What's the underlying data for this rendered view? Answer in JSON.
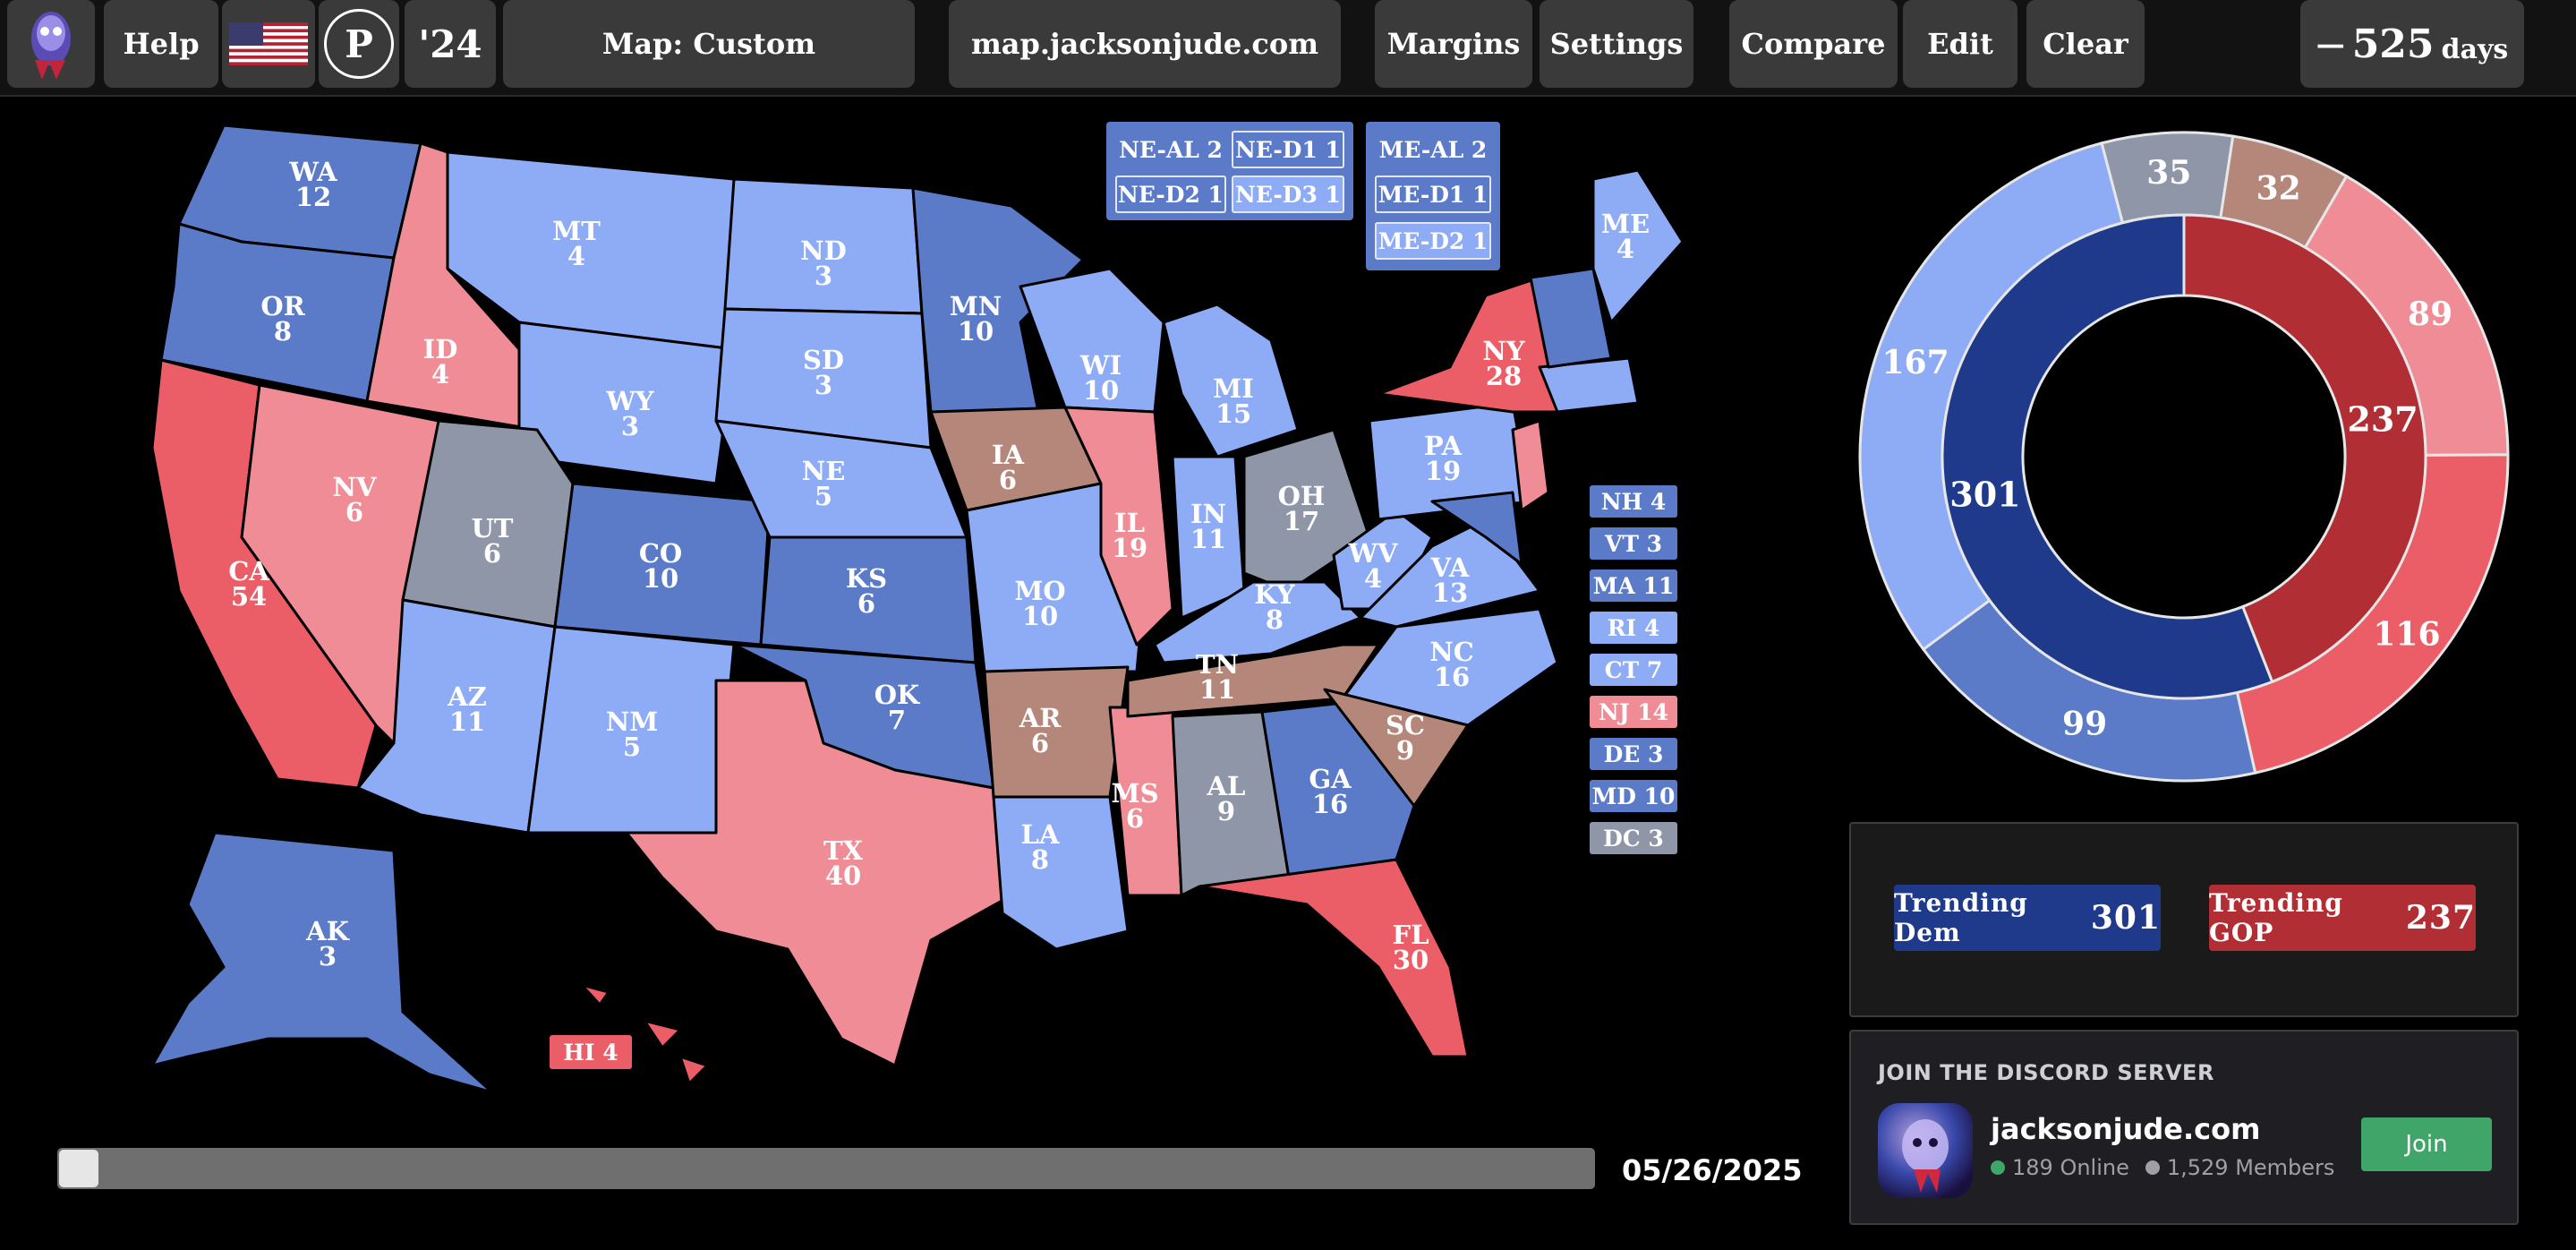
{
  "topbar": {
    "help_label": "Help",
    "p_label": "P",
    "year_label": "'24",
    "map_label": "Map: Custom",
    "site_label": "map.jacksonjude.com",
    "margins_label": "Margins",
    "settings_label": "Settings",
    "compare_label": "Compare",
    "edit_label": "Edit",
    "clear_label": "Clear",
    "days_dash": "—",
    "days_count": "525",
    "days_unit": "days"
  },
  "colors": {
    "safe_dem": "#5b7bc9",
    "likely_dem": "#8eabf5",
    "lean_dem": "#8eabf5",
    "tossup": "#8f96a8",
    "tilt_gop": "#b5877a",
    "lean_gop": "#ef8c95",
    "safe_gop": "#ec5e67",
    "dem_strong": "#1f3a8a",
    "gop_strong": "#b02e34"
  },
  "states": [
    {
      "abbr": "WA",
      "ev": "12"
    },
    {
      "abbr": "OR",
      "ev": "8"
    },
    {
      "abbr": "CA",
      "ev": "54"
    },
    {
      "abbr": "ID",
      "ev": "4"
    },
    {
      "abbr": "NV",
      "ev": "6"
    },
    {
      "abbr": "MT",
      "ev": "4"
    },
    {
      "abbr": "WY",
      "ev": "3"
    },
    {
      "abbr": "UT",
      "ev": "6"
    },
    {
      "abbr": "AZ",
      "ev": "11"
    },
    {
      "abbr": "CO",
      "ev": "10"
    },
    {
      "abbr": "NM",
      "ev": "5"
    },
    {
      "abbr": "ND",
      "ev": "3"
    },
    {
      "abbr": "SD",
      "ev": "3"
    },
    {
      "abbr": "NE",
      "ev": "5"
    },
    {
      "abbr": "KS",
      "ev": "6"
    },
    {
      "abbr": "OK",
      "ev": "7"
    },
    {
      "abbr": "TX",
      "ev": "40"
    },
    {
      "abbr": "MN",
      "ev": "10"
    },
    {
      "abbr": "IA",
      "ev": "6"
    },
    {
      "abbr": "MO",
      "ev": "10"
    },
    {
      "abbr": "AR",
      "ev": "6"
    },
    {
      "abbr": "LA",
      "ev": "8"
    },
    {
      "abbr": "WI",
      "ev": "10"
    },
    {
      "abbr": "IL",
      "ev": "19"
    },
    {
      "abbr": "MS",
      "ev": "6"
    },
    {
      "abbr": "MI",
      "ev": "15"
    },
    {
      "abbr": "IN",
      "ev": "11"
    },
    {
      "abbr": "KY",
      "ev": "8"
    },
    {
      "abbr": "TN",
      "ev": "11"
    },
    {
      "abbr": "AL",
      "ev": "9"
    },
    {
      "abbr": "GA",
      "ev": "16"
    },
    {
      "abbr": "FL",
      "ev": "30"
    },
    {
      "abbr": "OH",
      "ev": "17"
    },
    {
      "abbr": "WV",
      "ev": "4"
    },
    {
      "abbr": "VA",
      "ev": "13"
    },
    {
      "abbr": "NC",
      "ev": "16"
    },
    {
      "abbr": "SC",
      "ev": "9"
    },
    {
      "abbr": "PA",
      "ev": "19"
    },
    {
      "abbr": "NY",
      "ev": "28"
    },
    {
      "abbr": "ME",
      "ev": "4"
    },
    {
      "abbr": "AK",
      "ev": "3"
    }
  ],
  "hawaii_label": "HI 4",
  "district_boxes": {
    "nebraska": [
      "NE-AL 2",
      "NE-D1 1",
      "NE-D2 1",
      "NE-D3 1"
    ],
    "maine": [
      "ME-AL 2",
      "ME-D1 1",
      "ME-D2 1"
    ]
  },
  "side_chips": [
    "NH 4",
    "VT 3",
    "MA 11",
    "RI 4",
    "CT 7",
    "NJ 14",
    "DE 3",
    "MD 10",
    "DC 3"
  ],
  "slider": {
    "date": "05/26/2025",
    "position": 0
  },
  "chart_data": {
    "type": "pie",
    "inner_ring": [
      {
        "label": "301",
        "value": 301,
        "color": "#1f3a8a"
      },
      {
        "label": "237",
        "value": 237,
        "color": "#b02e34"
      }
    ],
    "outer_ring": [
      {
        "label": "35",
        "value": 35,
        "color": "#8f96a8"
      },
      {
        "label": "32",
        "value": 32,
        "color": "#b5877a"
      },
      {
        "label": "89",
        "value": 89,
        "color": "#ef8c95"
      },
      {
        "label": "116",
        "value": 116,
        "color": "#ec5e67"
      },
      {
        "label": "99",
        "value": 99,
        "color": "#5b7bc9"
      },
      {
        "label": "167",
        "value": 167,
        "color": "#8eabf5"
      }
    ]
  },
  "trending": {
    "dem_label": "Trending Dem",
    "dem_value": "301",
    "gop_label": "Trending GOP",
    "gop_value": "237"
  },
  "discord": {
    "heading": "JOIN THE DISCORD SERVER",
    "name": "jacksonjude.com",
    "online": "189 Online",
    "members": "1,529 Members",
    "join_label": "Join"
  }
}
